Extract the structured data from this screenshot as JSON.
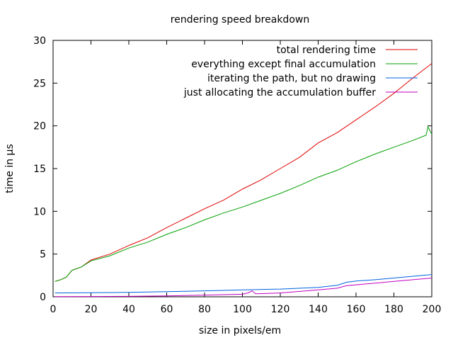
{
  "chart_data": {
    "type": "line",
    "title": "rendering speed breakdown",
    "xlabel": "size in pixels/em",
    "ylabel": "time in µs",
    "xlim": [
      0,
      200
    ],
    "ylim": [
      0,
      30
    ],
    "xticks": [
      0,
      20,
      40,
      60,
      80,
      100,
      120,
      140,
      160,
      180,
      200
    ],
    "yticks": [
      0,
      5,
      10,
      15,
      20,
      25,
      30
    ],
    "grid": false,
    "legend_position": "top-right",
    "series": [
      {
        "name": "total rendering time",
        "color": "#e00000",
        "x": [
          1,
          4,
          7,
          10,
          15,
          20,
          30,
          40,
          50,
          60,
          70,
          80,
          90,
          100,
          110,
          120,
          130,
          140,
          150,
          160,
          170,
          180,
          190,
          200
        ],
        "y": [
          1.8,
          2.0,
          2.3,
          3.1,
          3.5,
          4.3,
          5.0,
          6.0,
          6.9,
          8.1,
          9.2,
          10.3,
          11.3,
          12.6,
          13.7,
          15.0,
          16.3,
          18.0,
          19.2,
          20.7,
          22.2,
          23.8,
          25.6,
          27.3
        ]
      },
      {
        "name": "everything except final accumulation",
        "color": "#00a000",
        "x": [
          1,
          4,
          7,
          10,
          15,
          20,
          30,
          40,
          50,
          60,
          70,
          80,
          90,
          100,
          110,
          120,
          130,
          140,
          150,
          160,
          170,
          180,
          190,
          197,
          198,
          200
        ],
        "y": [
          1.8,
          2.0,
          2.3,
          3.1,
          3.5,
          4.2,
          4.8,
          5.7,
          6.4,
          7.3,
          8.1,
          9.0,
          9.8,
          10.5,
          11.3,
          12.1,
          13.0,
          14.0,
          14.8,
          15.8,
          16.7,
          17.5,
          18.3,
          18.9,
          19.9,
          19.0
        ]
      },
      {
        "name": "iterating the path, but no drawing",
        "color": "#0060e0",
        "x": [
          1,
          20,
          40,
          60,
          80,
          100,
          120,
          140,
          150,
          155,
          160,
          170,
          180,
          190,
          200
        ],
        "y": [
          0.45,
          0.48,
          0.52,
          0.6,
          0.7,
          0.8,
          0.9,
          1.1,
          1.35,
          1.7,
          1.85,
          2.0,
          2.2,
          2.4,
          2.6
        ]
      },
      {
        "name": "just allocating the accumulation buffer",
        "color": "#c000c0",
        "x": [
          1,
          20,
          40,
          60,
          80,
          100,
          103,
          105,
          107,
          120,
          140,
          150,
          155,
          160,
          170,
          180,
          190,
          200
        ],
        "y": [
          0.02,
          0.03,
          0.05,
          0.1,
          0.2,
          0.3,
          0.45,
          0.7,
          0.35,
          0.45,
          0.8,
          1.0,
          1.3,
          1.4,
          1.6,
          1.8,
          2.0,
          2.2
        ]
      }
    ]
  }
}
